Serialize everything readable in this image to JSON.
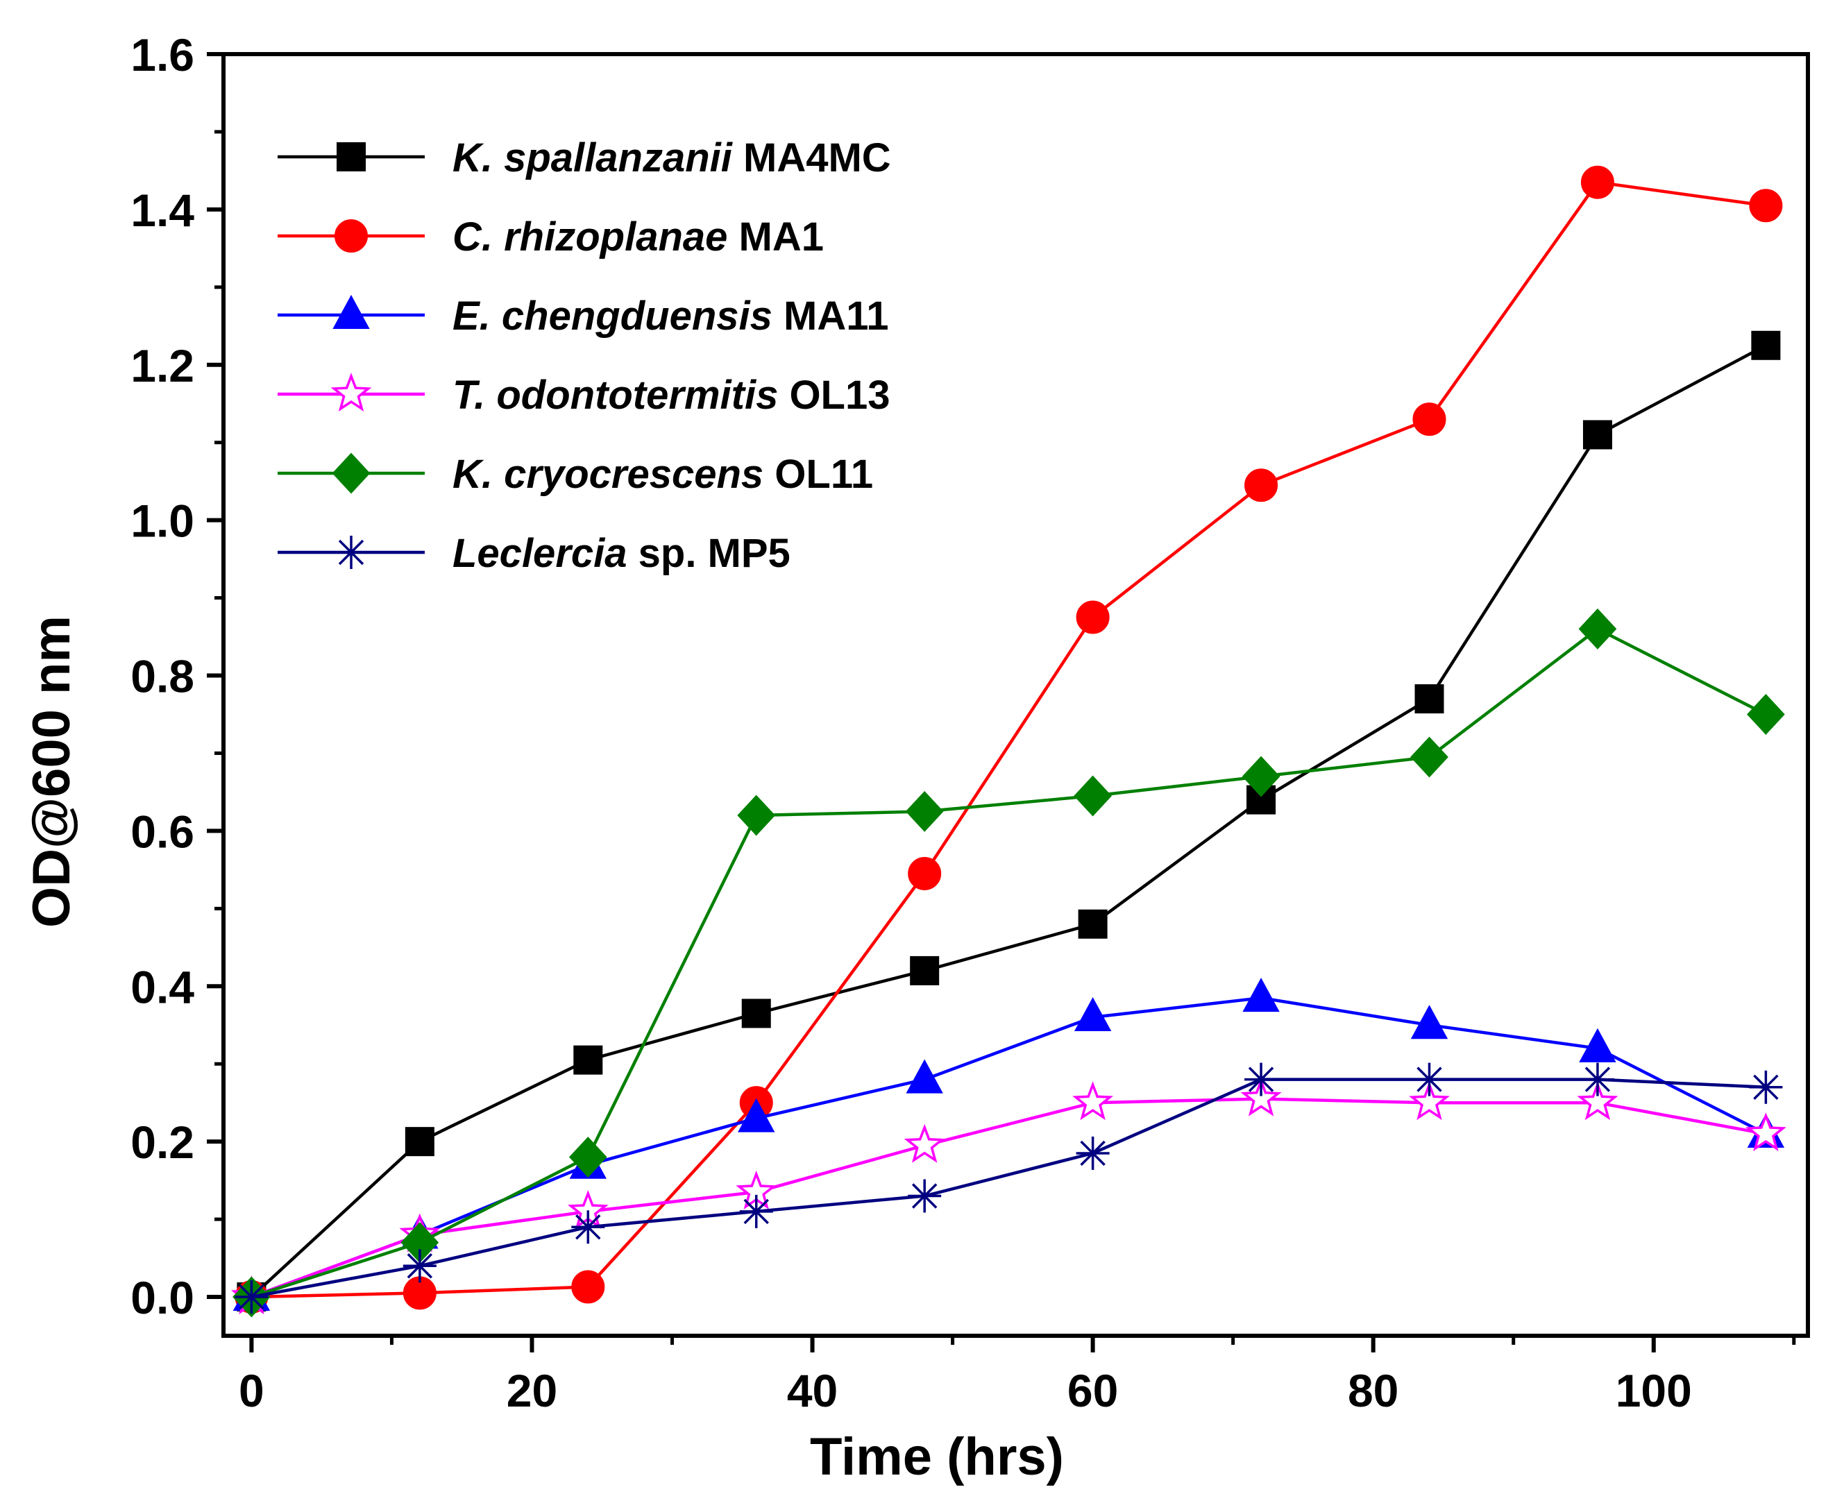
{
  "chart_data": {
    "type": "line",
    "title": "",
    "xlabel": "Time (hrs)",
    "ylabel": "OD@600 nm",
    "xlim": [
      -2,
      111
    ],
    "ylim": [
      -0.05,
      1.6
    ],
    "xticks": [
      0,
      20,
      40,
      60,
      80,
      100
    ],
    "xtick_labels": [
      "0",
      "20",
      "40",
      "60",
      "80",
      "100"
    ],
    "yticks": [
      0.0,
      0.2,
      0.4,
      0.6,
      0.8,
      1.0,
      1.2,
      1.4,
      1.6
    ],
    "ytick_labels": [
      "0.0",
      "0.2",
      "0.4",
      "0.6",
      "0.8",
      "1.0",
      "1.2",
      "1.4",
      "1.6"
    ],
    "grid": false,
    "legend_position": "top-left",
    "x": [
      0,
      12,
      24,
      36,
      48,
      60,
      72,
      84,
      96,
      108
    ],
    "series": [
      {
        "name": "K. spallanzanii MA4MC",
        "species": "K. spallanzanii",
        "strain": "MA4MC",
        "color": "#000000",
        "marker": "square",
        "values": [
          0.0,
          0.2,
          0.305,
          0.365,
          0.42,
          0.48,
          0.64,
          0.77,
          1.11,
          1.225
        ]
      },
      {
        "name": "C. rhizoplanae MA1",
        "species": "C. rhizoplanae",
        "strain": "MA1",
        "color": "#ff0000",
        "marker": "circle",
        "values": [
          0.0,
          0.005,
          0.013,
          0.25,
          0.545,
          0.875,
          1.045,
          1.13,
          1.435,
          1.405
        ]
      },
      {
        "name": "E. chengduensis MA11",
        "species": "E. chengduensis",
        "strain": "MA11",
        "color": "#0000ff",
        "marker": "triangle",
        "values": [
          0.0,
          0.08,
          0.17,
          0.23,
          0.28,
          0.36,
          0.385,
          0.35,
          0.32,
          0.21
        ]
      },
      {
        "name": "T. odontotermitis OL13",
        "species": "T. odontotermitis",
        "strain": "OL13",
        "color": "#ff00ff",
        "marker": "star",
        "values": [
          0.0,
          0.08,
          0.11,
          0.135,
          0.195,
          0.25,
          0.255,
          0.25,
          0.25,
          0.21
        ]
      },
      {
        "name": "K. cryocrescens OL11",
        "species": "K. cryocrescens",
        "strain": "OL11",
        "color": "#008000",
        "marker": "diamond",
        "values": [
          0.0,
          0.07,
          0.18,
          0.62,
          0.625,
          0.645,
          0.67,
          0.695,
          0.86,
          0.75
        ]
      },
      {
        "name": "Leclercia sp. MP5",
        "species": "Leclercia",
        "strain": "sp. MP5",
        "color": "#000080",
        "marker": "asterisk",
        "values": [
          0.0,
          0.04,
          0.09,
          0.11,
          0.13,
          0.185,
          0.28,
          0.28,
          0.28,
          0.27
        ]
      }
    ]
  }
}
